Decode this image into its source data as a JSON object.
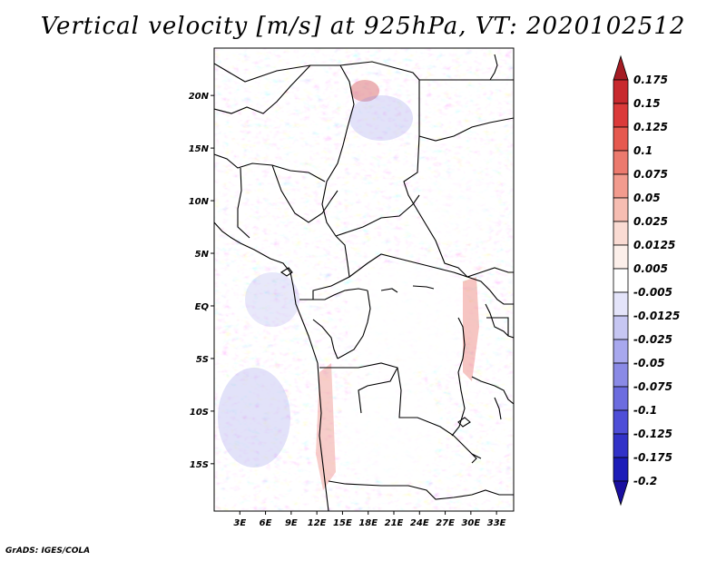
{
  "title": "Vertical velocity [m/s] at 925hPa, VT: 2020102512",
  "footer": "GrADS: IGES/COLA",
  "map": {
    "lat_labels": [
      "20N",
      "15N",
      "10N",
      "5N",
      "EQ",
      "5S",
      "10S",
      "15S"
    ],
    "lon_labels": [
      "3E",
      "6E",
      "9E",
      "12E",
      "15E",
      "18E",
      "21E",
      "24E",
      "27E",
      "30E",
      "33E"
    ],
    "lat_values": [
      20,
      15,
      10,
      5,
      0,
      -5,
      -10,
      -15
    ],
    "lon_values": [
      3,
      6,
      9,
      12,
      15,
      18,
      21,
      24,
      27,
      30,
      33
    ],
    "lat_range": [
      -19.5,
      24.5
    ],
    "lon_range": [
      0,
      35
    ]
  },
  "colorbar": {
    "labels": [
      "0.175",
      "0.15",
      "0.125",
      "0.1",
      "0.075",
      "0.05",
      "0.025",
      "0.0125",
      "0.005",
      "-0.005",
      "-0.0125",
      "-0.025",
      "-0.05",
      "-0.075",
      "-0.1",
      "-0.125",
      "-0.175",
      "-0.2"
    ],
    "colors": [
      "#a51c24",
      "#c8292e",
      "#db3a3a",
      "#e6594f",
      "#ec7a6e",
      "#f29b8e",
      "#f6bdb2",
      "#fadbd3",
      "#fcefea",
      "#ffffff",
      "#e4e4fa",
      "#c6c6f2",
      "#a8a8ee",
      "#8a8ae6",
      "#6c6cdf",
      "#4e4ed8",
      "#3232c8",
      "#1d1db8",
      "#1a0fa0"
    ]
  }
}
